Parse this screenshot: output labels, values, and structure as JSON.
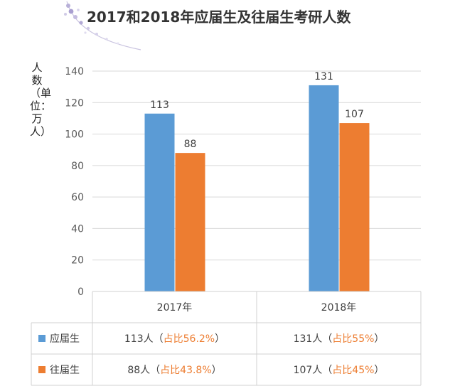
{
  "title": "2017和2018年应届生及往届生考研人数",
  "chart_data": {
    "type": "bar",
    "categories": [
      "2017年",
      "2018年"
    ],
    "series": [
      {
        "name": "应届生",
        "values": [
          113,
          131
        ],
        "color": "#5b9bd5",
        "table_prefix": [
          "113人（",
          "131人（"
        ],
        "table_share": [
          "占比56.2%",
          "占比55%"
        ],
        "table_suffix": [
          "）",
          "）"
        ]
      },
      {
        "name": "往届生",
        "values": [
          88,
          107
        ],
        "color": "#ed7d31",
        "table_prefix": [
          "88人（",
          "107人（"
        ],
        "table_share": [
          "占比43.8%",
          "占比45%"
        ],
        "table_suffix": [
          "）",
          "）"
        ]
      }
    ],
    "ylabel": "人数（单位：万人）",
    "ylim": [
      0,
      140
    ],
    "yticks": [
      0,
      20,
      40,
      60,
      80,
      100,
      120,
      140
    ],
    "grid": true,
    "legend": "data-table",
    "share_color": "#ed7d31"
  }
}
